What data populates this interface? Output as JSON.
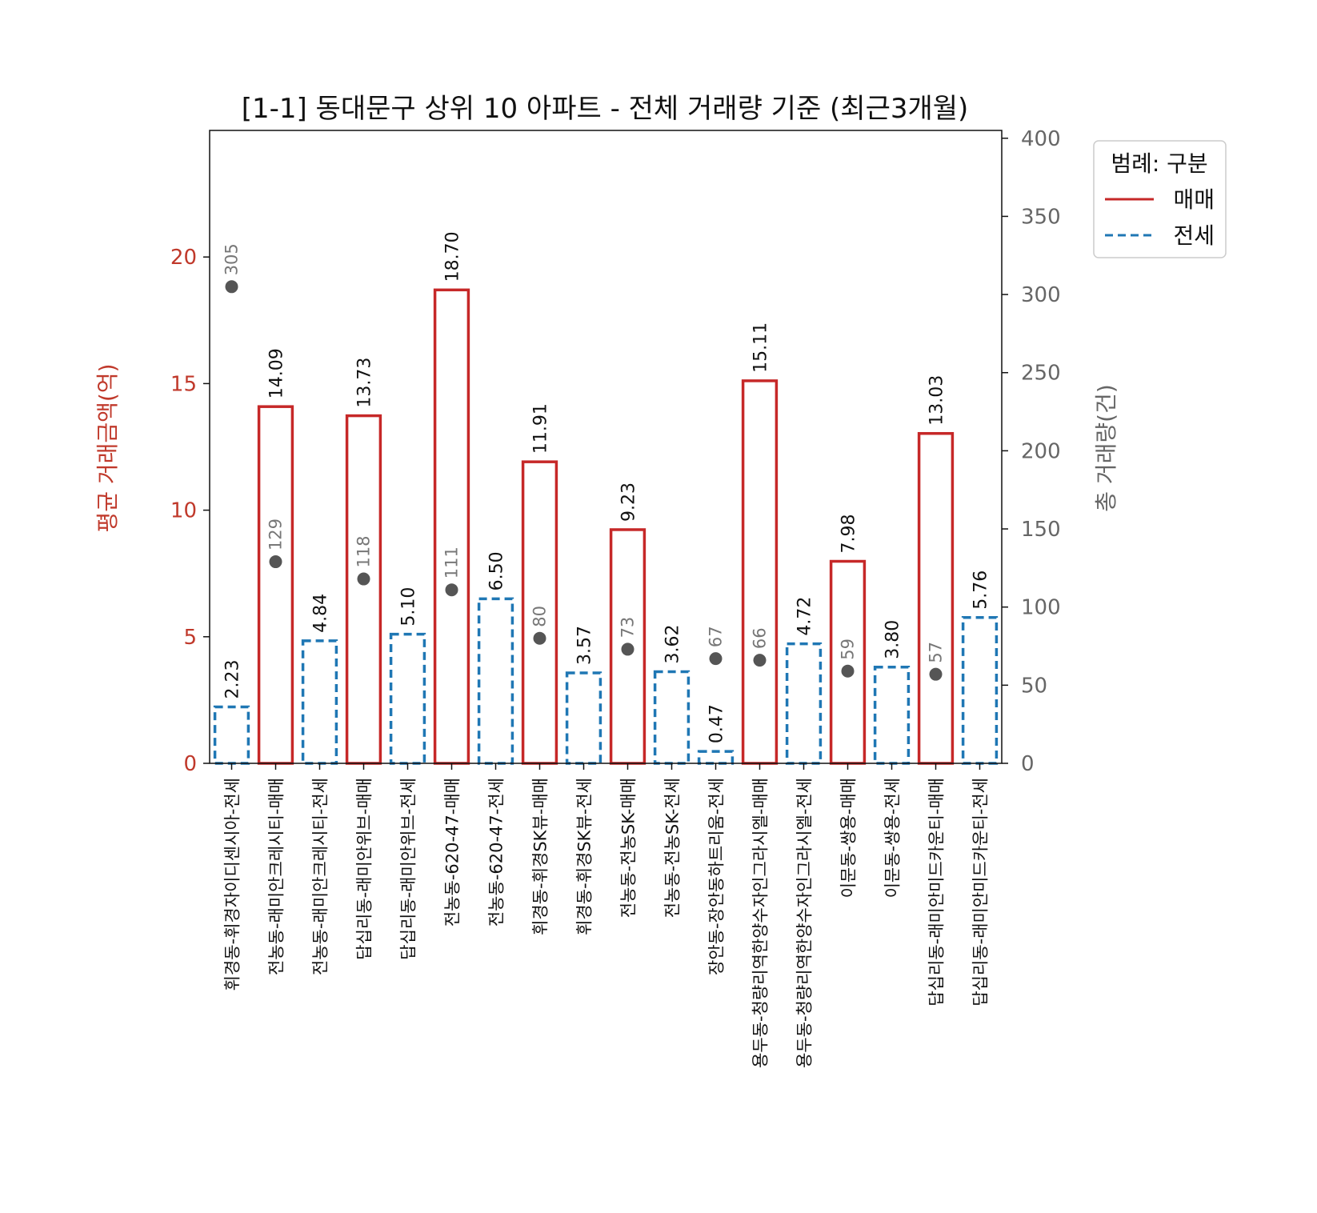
{
  "chart_data": {
    "type": "bar",
    "title": "[1-1] 동대문구 상위 10 아파트 - 전체 거래량 기준 (최근3개월)",
    "ylabel": "평균 거래금액(억)",
    "ylabel_right": "총 거래량(건)",
    "ylim": [
      0,
      25
    ],
    "ylim_right": [
      0,
      405
    ],
    "yticks": [
      "0",
      "5",
      "10",
      "15",
      "20"
    ],
    "yticks_right": [
      "0",
      "50",
      "100",
      "150",
      "200",
      "250",
      "300",
      "350",
      "400"
    ],
    "legend": {
      "title": "범례: 구분",
      "placement": "top-right outside",
      "items": [
        "매매",
        "전세"
      ]
    },
    "colors": {
      "매매": "#c62828",
      "전세": "#1f77b4",
      "count": "#555555"
    },
    "categories": [
      "휘경동-휘경자이디센시아-전세",
      "전농동-래미안크레시티-매매",
      "전농동-래미안크레시티-전세",
      "답십리동-래미안위브-매매",
      "답십리동-래미안위브-전세",
      "전농동-620-47-매매",
      "전농동-620-47-전세",
      "휘경동-휘경SK뷰-매매",
      "휘경동-휘경SK뷰-전세",
      "전농동-전농SK-매매",
      "전농동-전농SK-전세",
      "장안동-장안동하트리움-전세",
      "용두동-청량리역한양수자인그라시엘-매매",
      "용두동-청량리역한양수자인그라시엘-전세",
      "이문동-쌍용-매매",
      "이문동-쌍용-전세",
      "답십리동-래미안미드카운티-매매",
      "답십리동-래미안미드카운티-전세"
    ],
    "types": [
      "전세",
      "매매",
      "전세",
      "매매",
      "전세",
      "매매",
      "전세",
      "매매",
      "전세",
      "매매",
      "전세",
      "전세",
      "매매",
      "전세",
      "매매",
      "전세",
      "매매",
      "전세"
    ],
    "values": [
      2.23,
      14.09,
      4.84,
      13.73,
      5.1,
      18.7,
      6.5,
      11.91,
      3.57,
      9.23,
      3.62,
      0.47,
      15.11,
      4.72,
      7.98,
      3.8,
      13.03,
      5.76
    ],
    "value_labels": [
      "2.23",
      "14.09",
      "4.84",
      "13.73",
      "5.10",
      "18.70",
      "6.50",
      "11.91",
      "3.57",
      "9.23",
      "3.62",
      "0.47",
      "15.11",
      "4.72",
      "7.98",
      "3.80",
      "13.03",
      "5.76"
    ],
    "counts": [
      305,
      129,
      null,
      118,
      null,
      111,
      null,
      80,
      null,
      73,
      null,
      67,
      66,
      null,
      59,
      null,
      57,
      null
    ],
    "count_labels": [
      "305",
      "129",
      null,
      "118",
      null,
      "111",
      null,
      "80",
      null,
      "73",
      null,
      "67",
      "66",
      null,
      "59",
      null,
      "57",
      null
    ]
  }
}
